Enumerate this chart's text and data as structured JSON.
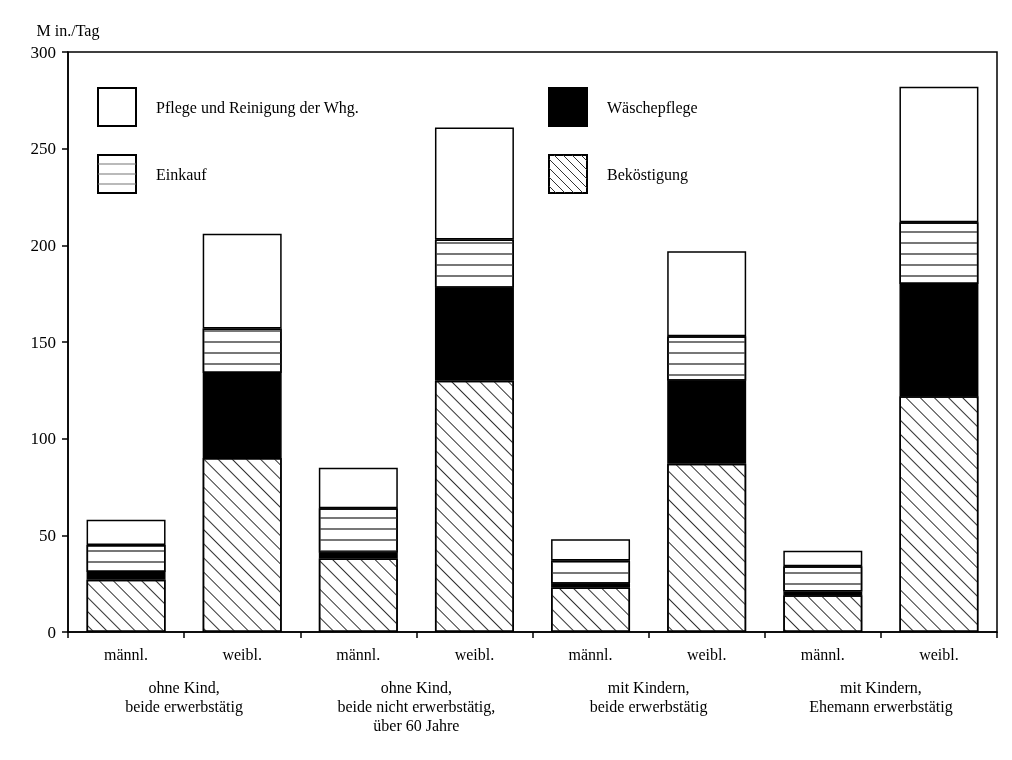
{
  "chart_data": {
    "type": "bar",
    "stacked": true,
    "ylabel": "M in./Tag",
    "categories": [
      "männl.",
      "weibl.",
      "männl.",
      "weibl.",
      "männl.",
      "weibl.",
      "männl.",
      "weibl."
    ],
    "series": [
      {
        "name": "Beköstigung",
        "color": "#ffffff",
        "values": [
          27,
          90,
          38,
          130,
          23,
          87,
          19,
          122
        ]
      },
      {
        "name": "Wäschepflege",
        "color": "#000000",
        "values": [
          4,
          44,
          3,
          48,
          2,
          43,
          2,
          58
        ]
      },
      {
        "name": "Einkauf",
        "color": "#ffffff",
        "values": [
          14,
          23,
          23,
          25,
          12,
          23,
          13,
          32
        ]
      },
      {
        "name": "Pflege und Reinigung der Whg.",
        "color": "#ffffff",
        "values": [
          13,
          49,
          21,
          58,
          11,
          44,
          8,
          70
        ]
      }
    ],
    "annotations": [
      "ohne Kind,\nbeide erwerbstätig",
      "ohne Kind,\nbeide nicht erwerbstätig,\nüber 60 Jahre",
      "mit Kindern,\nbeide erwerbstätig",
      "mit Kindern,\nEhemann erwerbstätig"
    ],
    "ylim": [
      0,
      300
    ],
    "yticks": [
      0,
      50,
      100,
      150,
      200,
      250,
      300
    ],
    "grid": false,
    "legend": "top left"
  }
}
